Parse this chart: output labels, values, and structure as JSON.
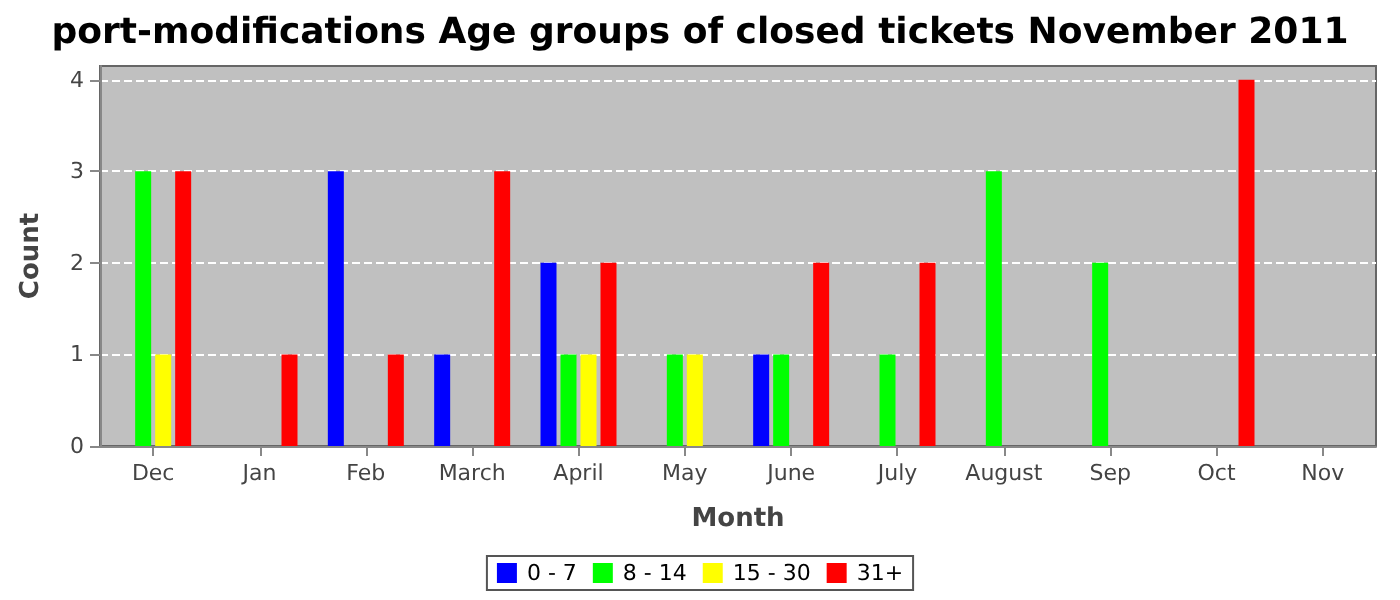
{
  "chart_data": {
    "type": "bar",
    "title": "port-modifications Age groups of closed tickets November 2011",
    "xlabel": "Month",
    "ylabel": "Count",
    "categories": [
      "Dec",
      "Jan",
      "Feb",
      "March",
      "April",
      "May",
      "June",
      "July",
      "August",
      "Sep",
      "Oct",
      "Nov"
    ],
    "series": [
      {
        "name": "0 - 7",
        "color": "#0000ff",
        "values": [
          0,
          0,
          3,
          1,
          2,
          0,
          1,
          0,
          0,
          0,
          0,
          0
        ]
      },
      {
        "name": "8 - 14",
        "color": "#00ff00",
        "values": [
          3,
          0,
          0,
          0,
          1,
          1,
          1,
          1,
          3,
          2,
          0,
          0
        ]
      },
      {
        "name": "15 - 30",
        "color": "#ffff00",
        "values": [
          1,
          0,
          0,
          0,
          1,
          1,
          0,
          0,
          0,
          0,
          0,
          0
        ]
      },
      {
        "name": "31+",
        "color": "#ff0000",
        "values": [
          3,
          1,
          1,
          3,
          2,
          0,
          2,
          2,
          0,
          0,
          4,
          0
        ]
      }
    ],
    "ylim": [
      0,
      4.15
    ],
    "yticks": [
      0,
      1,
      2,
      3,
      4
    ],
    "grid": "y",
    "legend": "bottom"
  }
}
